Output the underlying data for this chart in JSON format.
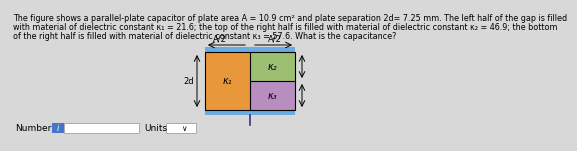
{
  "title_line1": "The figure shows a parallel-plate capacitor of plate area A = 10.9 cm² and plate separation 2d= 7.25 mm. The left half of the gap is filled",
  "title_line2": "with material of dielectric constant κ₁ = 21.6; the top of the right half is filled with material of dielectric constant κ₂ = 46.9; the bottom",
  "title_line3": "of the right half is filled with material of dielectric constant κ₃ = 57.6. What is the capacitance?",
  "title_fontsize": 5.8,
  "bg_color": "#d8d8d8",
  "k1_color": "#e8973a",
  "k2_color": "#9dbf72",
  "k3_color": "#b88ec0",
  "plate_color": "#6aacdf",
  "label_k1": "κ₁",
  "label_k2": "κ₂",
  "label_k3": "κ₃",
  "label_2d": "2d",
  "label_A2_left": "A/2",
  "label_A2_right": "A/2",
  "number_label": "Number",
  "units_label": "Units"
}
